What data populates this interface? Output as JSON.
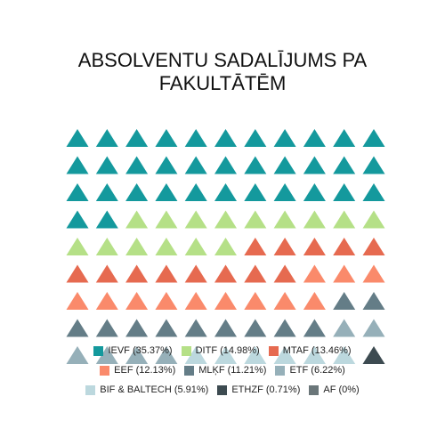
{
  "chart_data": {
    "type": "waffle",
    "title_lines": [
      "ABSOLVENTU SADALĪJUMS PA",
      "FAKULTĀTĒM"
    ],
    "grid": {
      "rows": 9,
      "cols": 11,
      "marker": "triangle"
    },
    "series": [
      {
        "name": "IEVF",
        "label": "IEVF (35.37%)",
        "percent": 35.37,
        "count": 35,
        "color": "#14999d"
      },
      {
        "name": "DITF",
        "label": "DITF (14.98%)",
        "percent": 14.98,
        "count": 15,
        "color": "#b5e087"
      },
      {
        "name": "MTAF",
        "label": "MTAF (13.46%)",
        "percent": 13.46,
        "count": 13,
        "color": "#e66a50"
      },
      {
        "name": "EEF",
        "label": "EEF (12.13%)",
        "percent": 12.13,
        "count": 12,
        "color": "#fa8a6b"
      },
      {
        "name": "MLĶF",
        "label": "MLĶF (11.21%)",
        "percent": 11.21,
        "count": 11,
        "color": "#647d87"
      },
      {
        "name": "ETF",
        "label": "ETF (6.22%)",
        "percent": 6.22,
        "count": 6,
        "color": "#96b0b9"
      },
      {
        "name": "BIF & BALTECH",
        "label": "BIF & BALTECH (5.91%)",
        "percent": 5.91,
        "count": 6,
        "color": "#bcd8de"
      },
      {
        "name": "ETHZF",
        "label": "ETHZF (0.71%)",
        "percent": 0.71,
        "count": 1,
        "color": "#3d4b51"
      },
      {
        "name": "AF",
        "label": "AF (0%)",
        "percent": 0,
        "count": 0,
        "color": "#6a7679"
      }
    ],
    "legend_rows": [
      [
        0,
        1,
        2
      ],
      [
        3,
        4,
        5
      ],
      [
        6,
        7,
        8
      ]
    ],
    "legend_position": "bottom"
  }
}
